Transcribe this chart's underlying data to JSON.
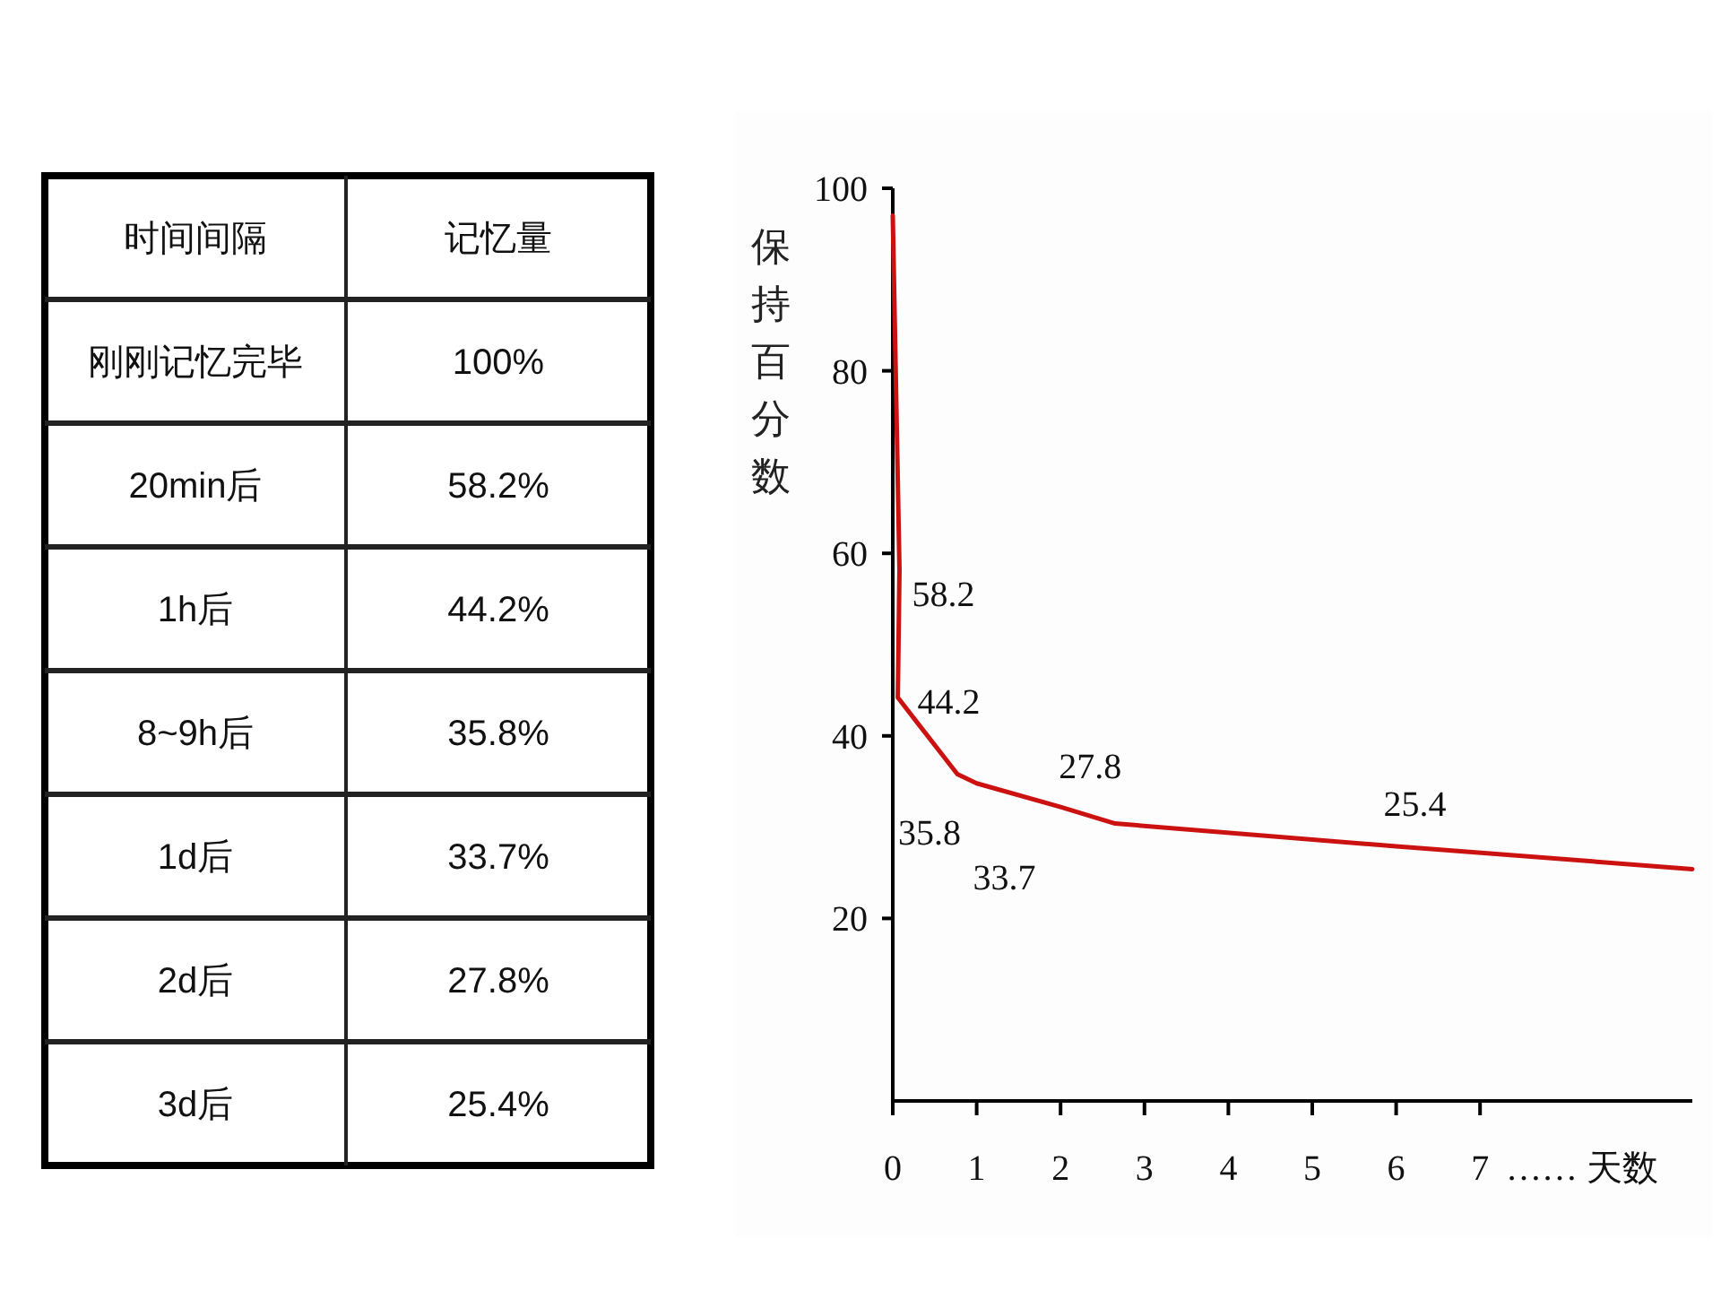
{
  "chart_data": [
    {
      "type": "other",
      "xlabel": "时间间隔",
      "ylabel": "记忆量",
      "categories": [
        "刚刚记忆完毕",
        "20min后",
        "1h后",
        "8~9h后",
        "1d后",
        "2d后",
        "3d后"
      ],
      "value_labels": [
        "100%",
        "58.2%",
        "44.2%",
        "35.8%",
        "33.7%",
        "27.8%",
        "25.4%"
      ]
    },
    {
      "type": "line",
      "ylabel": "保持百分数",
      "xlabel": "…… 天数",
      "series": [
        {
          "color": "#cc1111",
          "x": [
            0,
            0.08,
            0.06,
            0.77,
            1,
            2,
            2.65,
            6,
            9.53
          ],
          "values": [
            97,
            58.2,
            44.2,
            35.8,
            34.8,
            32.2,
            30.4,
            27.9,
            25.4
          ]
        }
      ],
      "annotations": [
        {
          "text": "58.2",
          "x": 0.08,
          "y": 58.2
        },
        {
          "text": "44.2",
          "x": 0.06,
          "y": 44.2
        },
        {
          "text": "35.8",
          "x": 0.77,
          "y": 35.8
        },
        {
          "text": "33.7",
          "x": 1,
          "y": 34.8
        },
        {
          "text": "27.8",
          "x": 2,
          "y": 32.2
        },
        {
          "text": "25.4",
          "x": 6,
          "y": 27.9
        }
      ],
      "xlim": [
        0,
        9.53
      ],
      "ylim": [
        0,
        100
      ],
      "xticks": [
        0,
        1,
        2,
        3,
        4,
        5,
        6,
        7
      ],
      "yticks": [
        20,
        40,
        60,
        80,
        100
      ],
      "line_style": "solid"
    }
  ]
}
